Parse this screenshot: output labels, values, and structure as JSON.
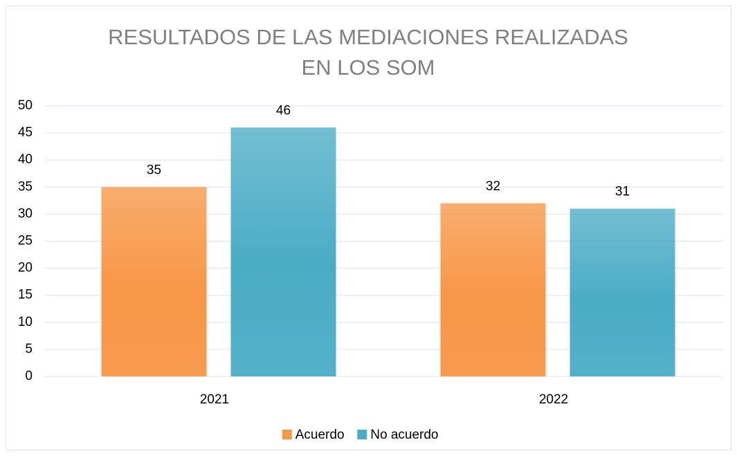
{
  "chart_data": {
    "type": "bar",
    "title": "RESULTADOS DE LAS MEDIACIONES REALIZADAS EN LOS SOM",
    "categories": [
      "2021",
      "2022"
    ],
    "series": [
      {
        "name": "Acuerdo",
        "color": "#f79646",
        "values": [
          35,
          32
        ]
      },
      {
        "name": "No acuerdo",
        "color": "#4bacc6",
        "values": [
          46,
          31
        ]
      }
    ],
    "ylim": [
      0,
      50
    ],
    "yticks": [
      0,
      5,
      10,
      15,
      20,
      25,
      30,
      35,
      40,
      45,
      50
    ],
    "grid": true,
    "legend": "bottom"
  }
}
